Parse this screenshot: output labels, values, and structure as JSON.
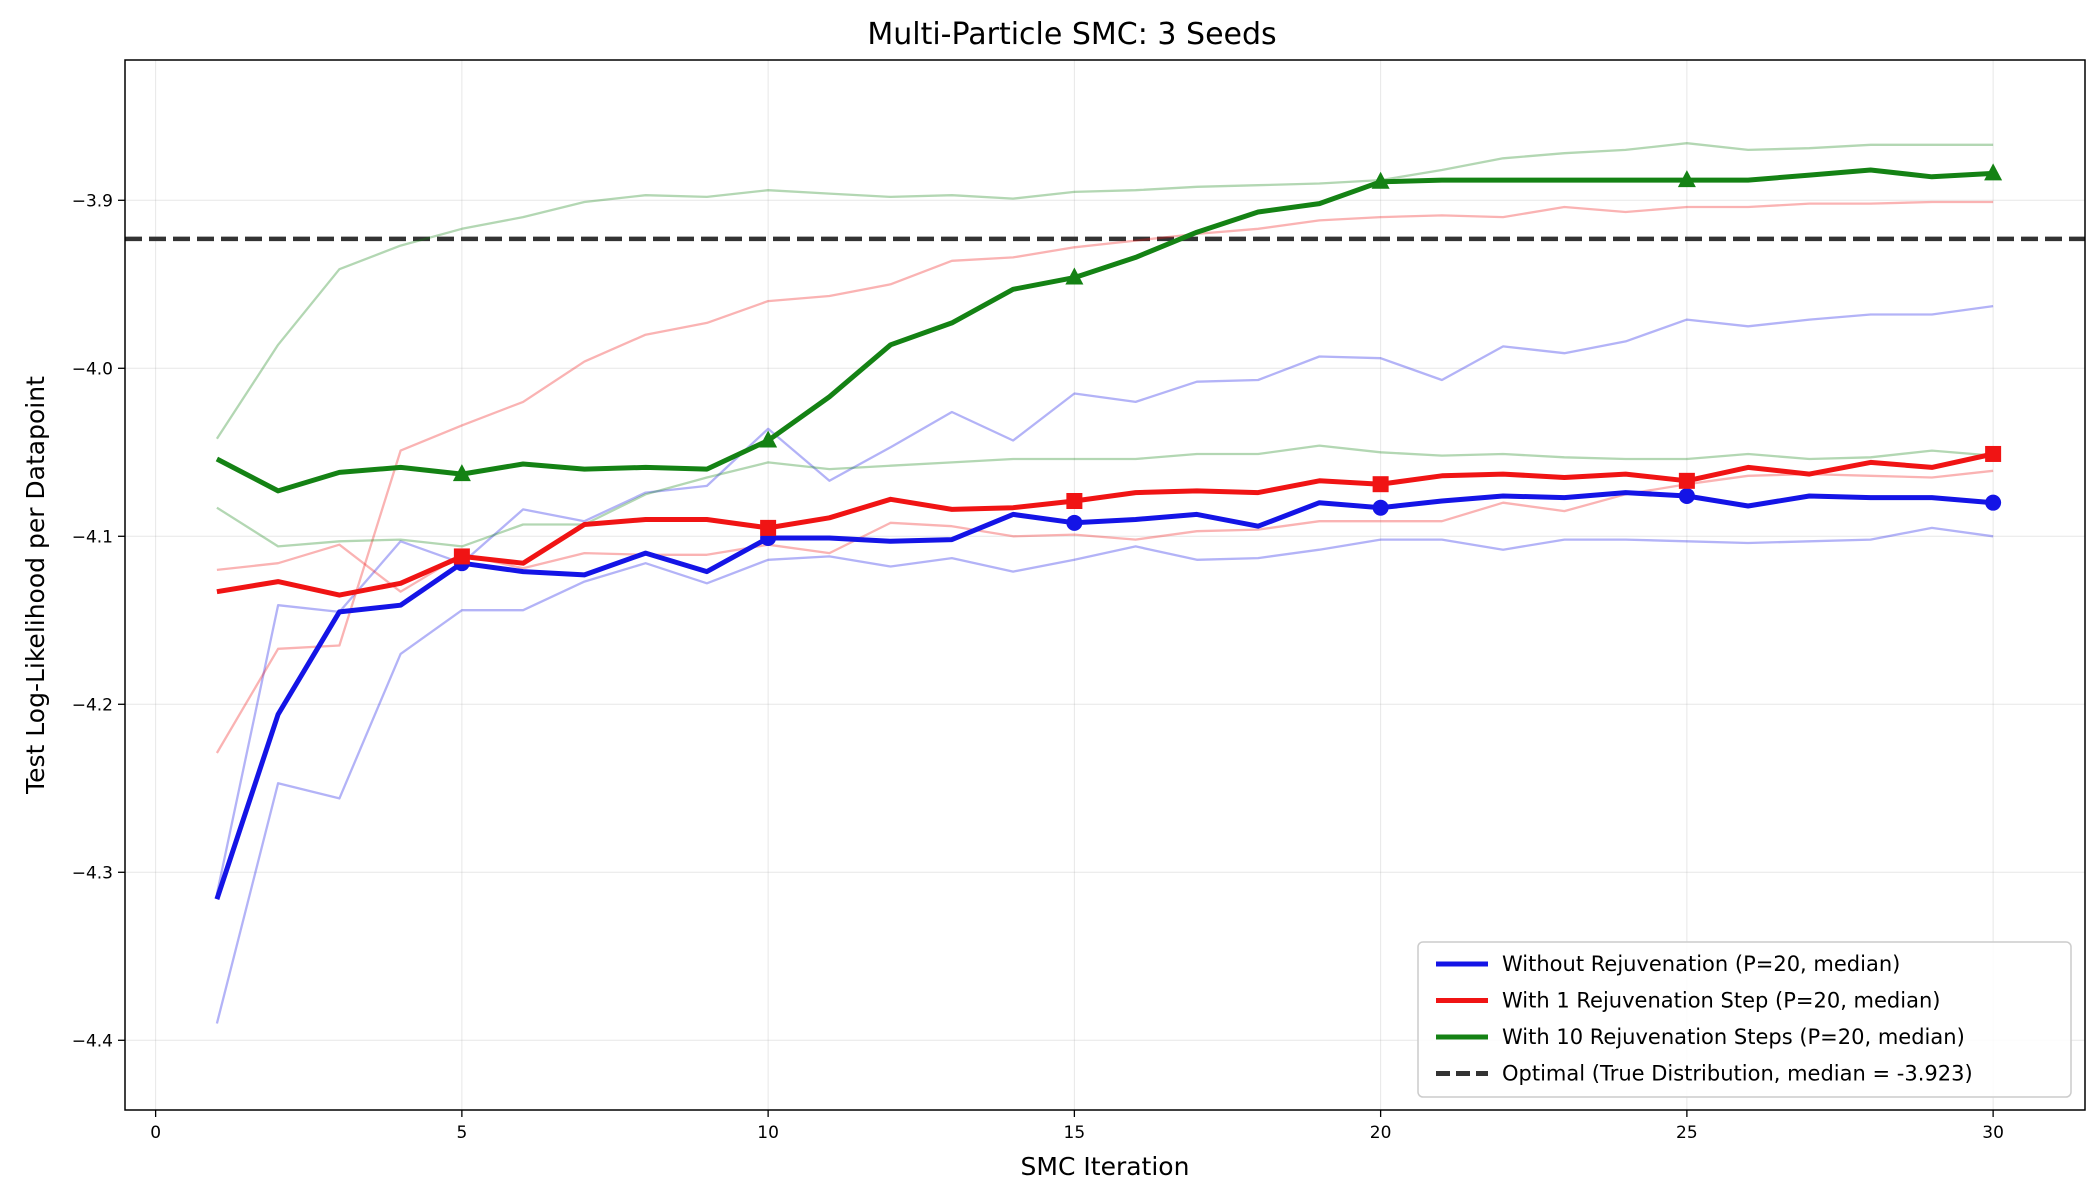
{
  "chart_data": {
    "type": "line",
    "title": "Multi-Particle SMC: 3 Seeds",
    "xlabel": "SMC Iteration",
    "ylabel": "Test Log-Likelihood per Datapoint",
    "xlim": [
      -0.5,
      31.5
    ],
    "ylim": [
      -4.4415,
      -3.8165
    ],
    "xticks": [
      0,
      5,
      10,
      15,
      20,
      25,
      30
    ],
    "yticks": [
      -4.4,
      -4.3,
      -4.2,
      -4.1,
      -4.0,
      -3.9
    ],
    "xtick_labels": [
      "0",
      "5",
      "10",
      "15",
      "20",
      "25",
      "30"
    ],
    "ytick_labels": [
      "−4.4",
      "−4.3",
      "−4.2",
      "−4.1",
      "−4.0",
      "−3.9"
    ],
    "grid": true,
    "legend_position": "lower-right",
    "x": [
      1,
      2,
      3,
      4,
      5,
      6,
      7,
      8,
      9,
      10,
      11,
      12,
      13,
      14,
      15,
      16,
      17,
      18,
      19,
      20,
      21,
      22,
      23,
      24,
      25,
      26,
      27,
      28,
      29,
      30
    ],
    "series": [
      {
        "name": "Without Rejuvenation (P=20, median)",
        "color": "#1414e6",
        "marker": "circle",
        "values": [
          -4.316,
          -4.206,
          -4.145,
          -4.141,
          -4.116,
          -4.121,
          -4.123,
          -4.11,
          -4.121,
          -4.101,
          -4.101,
          -4.103,
          -4.102,
          -4.087,
          -4.092,
          -4.09,
          -4.087,
          -4.094,
          -4.08,
          -4.083,
          -4.079,
          -4.076,
          -4.077,
          -4.074,
          -4.076,
          -4.082,
          -4.076,
          -4.077,
          -4.077,
          -4.08
        ],
        "seeds": [
          [
            -4.313,
            -4.141,
            -4.145,
            -4.103,
            -4.116,
            -4.084,
            -4.091,
            -4.074,
            -4.07,
            -4.036,
            -4.067,
            -4.047,
            -4.026,
            -4.043,
            -4.015,
            -4.02,
            -4.008,
            -4.007,
            -3.993,
            -3.994,
            -4.007,
            -3.987,
            -3.991,
            -3.984,
            -3.971,
            -3.975,
            -3.971,
            -3.968,
            -3.968,
            -3.963
          ],
          [
            -4.39,
            -4.247,
            -4.256,
            -4.17,
            -4.144,
            -4.144,
            -4.127,
            -4.116,
            -4.128,
            -4.114,
            -4.112,
            -4.118,
            -4.113,
            -4.121,
            -4.114,
            -4.106,
            -4.114,
            -4.113,
            -4.108,
            -4.102,
            -4.102,
            -4.108,
            -4.102,
            -4.102,
            -4.103,
            -4.104,
            -4.103,
            -4.102,
            -4.095,
            -4.1
          ]
        ]
      },
      {
        "name": "With 1 Rejuvenation Step (P=20, median)",
        "color": "#f01414",
        "marker": "square",
        "values": [
          -4.133,
          -4.127,
          -4.135,
          -4.128,
          -4.112,
          -4.116,
          -4.093,
          -4.09,
          -4.09,
          -4.095,
          -4.089,
          -4.078,
          -4.084,
          -4.083,
          -4.079,
          -4.074,
          -4.073,
          -4.074,
          -4.067,
          -4.069,
          -4.064,
          -4.063,
          -4.065,
          -4.063,
          -4.067,
          -4.059,
          -4.063,
          -4.056,
          -4.059,
          -4.051
        ],
        "seeds": [
          [
            -4.229,
            -4.167,
            -4.165,
            -4.049,
            -4.034,
            -4.02,
            -3.996,
            -3.98,
            -3.973,
            -3.96,
            -3.957,
            -3.95,
            -3.936,
            -3.934,
            -3.928,
            -3.924,
            -3.92,
            -3.917,
            -3.912,
            -3.91,
            -3.909,
            -3.91,
            -3.904,
            -3.907,
            -3.904,
            -3.904,
            -3.902,
            -3.902,
            -3.901,
            -3.901
          ],
          [
            -4.12,
            -4.116,
            -4.105,
            -4.133,
            -4.111,
            -4.119,
            -4.11,
            -4.111,
            -4.111,
            -4.105,
            -4.11,
            -4.092,
            -4.094,
            -4.1,
            -4.099,
            -4.102,
            -4.097,
            -4.096,
            -4.091,
            -4.091,
            -4.091,
            -4.08,
            -4.085,
            -4.075,
            -4.069,
            -4.064,
            -4.063,
            -4.064,
            -4.065,
            -4.061
          ]
        ]
      },
      {
        "name": "With 10 Rejuvenation Steps (P=20, median)",
        "color": "#148214",
        "marker": "triangle",
        "values": [
          -4.054,
          -4.073,
          -4.062,
          -4.059,
          -4.063,
          -4.057,
          -4.06,
          -4.059,
          -4.06,
          -4.043,
          -4.017,
          -3.986,
          -3.973,
          -3.953,
          -3.946,
          -3.934,
          -3.919,
          -3.907,
          -3.902,
          -3.889,
          -3.888,
          -3.888,
          -3.888,
          -3.888,
          -3.888,
          -3.888,
          -3.885,
          -3.882,
          -3.886,
          -3.884
        ],
        "seeds": [
          [
            -4.042,
            -3.986,
            -3.941,
            -3.927,
            -3.917,
            -3.91,
            -3.901,
            -3.897,
            -3.898,
            -3.894,
            -3.896,
            -3.898,
            -3.897,
            -3.899,
            -3.895,
            -3.894,
            -3.892,
            -3.891,
            -3.89,
            -3.888,
            -3.882,
            -3.875,
            -3.872,
            -3.87,
            -3.866,
            -3.87,
            -3.869,
            -3.867,
            -3.867,
            -3.867
          ],
          [
            -4.083,
            -4.106,
            -4.103,
            -4.102,
            -4.106,
            -4.093,
            -4.093,
            -4.075,
            -4.065,
            -4.056,
            -4.06,
            -4.058,
            -4.056,
            -4.054,
            -4.054,
            -4.054,
            -4.051,
            -4.051,
            -4.046,
            -4.05,
            -4.052,
            -4.051,
            -4.053,
            -4.054,
            -4.054,
            -4.051,
            -4.054,
            -4.053,
            -4.049,
            -4.052
          ]
        ]
      }
    ],
    "marker_x": [
      5,
      10,
      15,
      20,
      25,
      30
    ],
    "reference_line": {
      "name": "Optimal (True Distribution, median = -3.923)",
      "value": -3.923,
      "color": "#333333",
      "style": "dashed"
    }
  }
}
